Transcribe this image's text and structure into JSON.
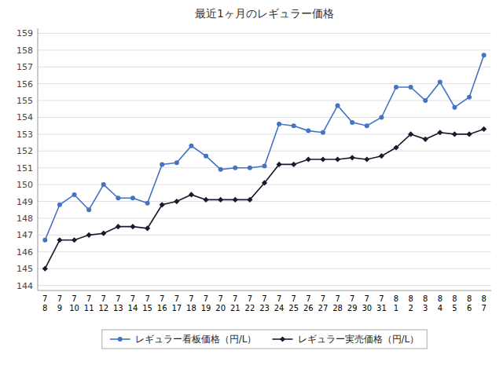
{
  "chart_data": {
    "type": "line",
    "title": "最近1ヶ月のレギュラー価格",
    "categories": [
      "7\n8",
      "7\n9",
      "7\n10",
      "7\n11",
      "7\n12",
      "7\n13",
      "7\n14",
      "7\n15",
      "7\n16",
      "7\n17",
      "7\n18",
      "7\n19",
      "7\n20",
      "7\n21",
      "7\n22",
      "7\n23",
      "7\n24",
      "7\n25",
      "7\n26",
      "7\n27",
      "7\n28",
      "7\n29",
      "7\n30",
      "7\n31",
      "8\n1",
      "8\n2",
      "8\n3",
      "8\n4",
      "8\n5",
      "8\n6",
      "8\n7"
    ],
    "series": [
      {
        "name": "レギュラー看板価格（円/L）",
        "color": "#4472C4",
        "marker": "circle",
        "values": [
          146.7,
          148.8,
          149.4,
          148.5,
          150.0,
          149.2,
          149.2,
          148.9,
          151.2,
          151.3,
          152.3,
          151.7,
          150.9,
          151.0,
          151.0,
          151.1,
          153.6,
          153.5,
          153.2,
          153.1,
          154.7,
          153.7,
          153.5,
          154.0,
          155.8,
          155.8,
          155.0,
          156.1,
          154.6,
          155.2,
          157.7
        ]
      },
      {
        "name": "レギュラー実売価格（円/L）",
        "color": "#1A1A2E",
        "marker": "diamond",
        "values": [
          145.0,
          146.7,
          146.7,
          147.0,
          147.1,
          147.5,
          147.5,
          147.4,
          148.8,
          149.0,
          149.4,
          149.1,
          149.1,
          149.1,
          149.1,
          150.1,
          151.2,
          151.2,
          151.5,
          151.5,
          151.5,
          151.6,
          151.5,
          151.7,
          152.2,
          153.0,
          152.7,
          153.1,
          153.0,
          153.0,
          153.3
        ]
      }
    ],
    "ylim": [
      143.7,
      159.3
    ],
    "yticks": [
      144,
      145,
      146,
      147,
      148,
      149,
      150,
      151,
      152,
      153,
      154,
      155,
      156,
      157,
      158,
      159
    ],
    "grid": true,
    "legend": "bottom"
  }
}
